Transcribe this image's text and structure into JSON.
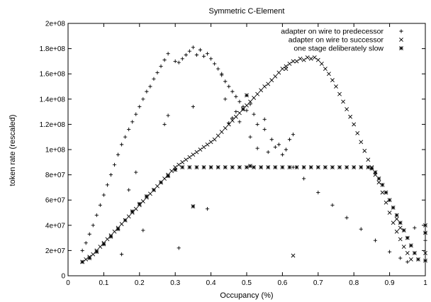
{
  "chart_data": {
    "type": "scatter",
    "title": "Symmetric C-Element",
    "xlabel": "Occupancy (%)",
    "ylabel": "token rate (rescaled)",
    "xlim": [
      0,
      1
    ],
    "ylim": [
      0,
      200000000
    ],
    "x_ticks": [
      0,
      0.1,
      0.2,
      0.3,
      0.4,
      0.5,
      0.6,
      0.7,
      0.8,
      0.9,
      1
    ],
    "x_tick_labels": [
      "0",
      "0.1",
      "0.2",
      "0.3",
      "0.4",
      "0.5",
      "0.6",
      "0.7",
      "0.8",
      "0.9",
      "1"
    ],
    "y_ticks": [
      0,
      20000000,
      40000000,
      60000000,
      80000000,
      100000000,
      120000000,
      140000000,
      160000000,
      180000000,
      200000000
    ],
    "y_tick_labels": [
      "0",
      "2e+07",
      "4e+07",
      "6e+07",
      "8e+07",
      "1e+08",
      "1.2e+08",
      "1.4e+08",
      "1.6e+08",
      "1.8e+08",
      "2e+08"
    ],
    "grid": false,
    "legend_position": "top-right",
    "series": [
      {
        "name": "adapter on wire to predecessor",
        "marker": "plus",
        "points": [
          [
            0.04,
            20000000
          ],
          [
            0.05,
            26000000
          ],
          [
            0.06,
            33000000
          ],
          [
            0.07,
            40000000
          ],
          [
            0.08,
            48000000
          ],
          [
            0.09,
            56000000
          ],
          [
            0.1,
            64000000
          ],
          [
            0.11,
            72000000
          ],
          [
            0.12,
            80000000
          ],
          [
            0.13,
            88000000
          ],
          [
            0.14,
            96000000
          ],
          [
            0.15,
            104000000
          ],
          [
            0.16,
            110000000
          ],
          [
            0.17,
            116000000
          ],
          [
            0.18,
            122000000
          ],
          [
            0.19,
            128000000
          ],
          [
            0.2,
            134000000
          ],
          [
            0.21,
            140000000
          ],
          [
            0.22,
            146000000
          ],
          [
            0.23,
            150000000
          ],
          [
            0.24,
            156000000
          ],
          [
            0.25,
            161000000
          ],
          [
            0.26,
            166000000
          ],
          [
            0.27,
            171000000
          ],
          [
            0.28,
            176000000
          ],
          [
            0.3,
            170000000
          ],
          [
            0.31,
            169000000
          ],
          [
            0.32,
            172000000
          ],
          [
            0.33,
            175000000
          ],
          [
            0.34,
            178000000
          ],
          [
            0.35,
            181000000
          ],
          [
            0.36,
            175000000
          ],
          [
            0.37,
            179000000
          ],
          [
            0.38,
            174000000
          ],
          [
            0.39,
            176000000
          ],
          [
            0.4,
            172000000
          ],
          [
            0.41,
            168000000
          ],
          [
            0.42,
            164000000
          ],
          [
            0.43,
            159000000
          ],
          [
            0.44,
            154000000
          ],
          [
            0.45,
            150000000
          ],
          [
            0.46,
            146000000
          ],
          [
            0.47,
            142000000
          ],
          [
            0.48,
            138000000
          ],
          [
            0.49,
            134000000
          ],
          [
            0.5,
            131000000
          ],
          [
            0.51,
            136000000
          ],
          [
            0.52,
            128000000
          ],
          [
            0.53,
            120000000
          ],
          [
            0.55,
            116000000
          ],
          [
            0.57,
            108000000
          ],
          [
            0.6,
            96000000
          ],
          [
            0.63,
            86000000
          ],
          [
            0.66,
            77000000
          ],
          [
            0.7,
            66000000
          ],
          [
            0.74,
            56000000
          ],
          [
            0.78,
            46000000
          ],
          [
            0.82,
            37000000
          ],
          [
            0.86,
            28000000
          ],
          [
            0.9,
            19000000
          ],
          [
            0.93,
            14000000
          ],
          [
            0.95,
            11000000
          ],
          [
            0.97,
            38000000
          ],
          [
            1.0,
            28000000
          ],
          [
            0.15,
            17000000
          ],
          [
            0.17,
            68000000
          ],
          [
            0.19,
            82000000
          ],
          [
            0.21,
            36000000
          ],
          [
            0.27,
            120000000
          ],
          [
            0.28,
            127000000
          ],
          [
            0.31,
            22000000
          ],
          [
            0.35,
            134000000
          ],
          [
            0.39,
            53000000
          ],
          [
            0.43,
            160000000
          ],
          [
            0.44,
            140000000
          ],
          [
            0.45,
            121000000
          ],
          [
            0.46,
            125000000
          ],
          [
            0.47,
            130000000
          ],
          [
            0.48,
            122000000
          ],
          [
            0.51,
            110000000
          ],
          [
            0.53,
            101000000
          ],
          [
            0.56,
            98000000
          ],
          [
            0.58,
            102000000
          ],
          [
            0.59,
            104000000
          ],
          [
            0.61,
            100000000
          ],
          [
            0.62,
            108000000
          ],
          [
            0.63,
            112000000
          ],
          [
            0.55,
            124000000
          ]
        ]
      },
      {
        "name": "adapter on wire to successor",
        "marker": "cross",
        "points": [
          [
            0.04,
            11000000
          ],
          [
            0.05,
            13000000
          ],
          [
            0.06,
            15000000
          ],
          [
            0.07,
            17000000
          ],
          [
            0.08,
            20000000
          ],
          [
            0.09,
            23000000
          ],
          [
            0.1,
            26000000
          ],
          [
            0.11,
            29000000
          ],
          [
            0.12,
            32000000
          ],
          [
            0.13,
            35000000
          ],
          [
            0.14,
            38000000
          ],
          [
            0.15,
            41000000
          ],
          [
            0.16,
            44000000
          ],
          [
            0.17,
            47000000
          ],
          [
            0.18,
            50000000
          ],
          [
            0.19,
            53000000
          ],
          [
            0.2,
            56000000
          ],
          [
            0.21,
            59000000
          ],
          [
            0.22,
            62000000
          ],
          [
            0.23,
            65000000
          ],
          [
            0.24,
            68000000
          ],
          [
            0.25,
            71000000
          ],
          [
            0.26,
            74000000
          ],
          [
            0.27,
            77000000
          ],
          [
            0.28,
            80000000
          ],
          [
            0.29,
            83000000
          ],
          [
            0.3,
            86000000
          ],
          [
            0.31,
            88000000
          ],
          [
            0.32,
            90000000
          ],
          [
            0.33,
            92000000
          ],
          [
            0.34,
            94000000
          ],
          [
            0.35,
            96000000
          ],
          [
            0.36,
            98000000
          ],
          [
            0.37,
            100000000
          ],
          [
            0.38,
            102000000
          ],
          [
            0.39,
            104000000
          ],
          [
            0.4,
            106000000
          ],
          [
            0.41,
            108000000
          ],
          [
            0.42,
            111000000
          ],
          [
            0.43,
            114000000
          ],
          [
            0.44,
            117000000
          ],
          [
            0.45,
            120000000
          ],
          [
            0.46,
            123000000
          ],
          [
            0.47,
            126000000
          ],
          [
            0.48,
            129000000
          ],
          [
            0.49,
            132000000
          ],
          [
            0.5,
            135000000
          ],
          [
            0.51,
            138000000
          ],
          [
            0.52,
            141000000
          ],
          [
            0.53,
            144000000
          ],
          [
            0.54,
            147000000
          ],
          [
            0.55,
            150000000
          ],
          [
            0.56,
            152000000
          ],
          [
            0.57,
            155000000
          ],
          [
            0.58,
            158000000
          ],
          [
            0.59,
            161000000
          ],
          [
            0.6,
            164000000
          ],
          [
            0.61,
            166000000
          ],
          [
            0.62,
            168000000
          ],
          [
            0.63,
            170000000
          ],
          [
            0.64,
            170000000
          ],
          [
            0.65,
            172000000
          ],
          [
            0.66,
            171000000
          ],
          [
            0.67,
            173000000
          ],
          [
            0.68,
            172000000
          ],
          [
            0.69,
            173000000
          ],
          [
            0.7,
            171000000
          ],
          [
            0.71,
            168000000
          ],
          [
            0.72,
            164000000
          ],
          [
            0.73,
            160000000
          ],
          [
            0.74,
            155000000
          ],
          [
            0.75,
            150000000
          ],
          [
            0.76,
            144000000
          ],
          [
            0.77,
            138000000
          ],
          [
            0.78,
            132000000
          ],
          [
            0.79,
            126000000
          ],
          [
            0.8,
            120000000
          ],
          [
            0.81,
            113000000
          ],
          [
            0.82,
            106000000
          ],
          [
            0.83,
            99000000
          ],
          [
            0.84,
            92000000
          ],
          [
            0.85,
            86000000
          ],
          [
            0.86,
            80000000
          ],
          [
            0.87,
            74000000
          ],
          [
            0.88,
            66000000
          ],
          [
            0.89,
            58000000
          ],
          [
            0.9,
            50000000
          ],
          [
            0.91,
            42000000
          ],
          [
            0.92,
            35000000
          ],
          [
            0.93,
            29000000
          ],
          [
            0.94,
            23000000
          ],
          [
            0.95,
            18000000
          ],
          [
            0.96,
            13000000
          ],
          [
            1.0,
            18000000
          ],
          [
            0.61,
            164000000
          ],
          [
            0.63,
            16000000
          ],
          [
            0.92,
            45000000
          ],
          [
            0.93,
            38000000
          ]
        ]
      },
      {
        "name": "one stage deliberately slow",
        "marker": "star",
        "points": [
          [
            0.04,
            11000000
          ],
          [
            0.06,
            14000000
          ],
          [
            0.08,
            19000000
          ],
          [
            0.1,
            25000000
          ],
          [
            0.12,
            31000000
          ],
          [
            0.14,
            37000000
          ],
          [
            0.16,
            44000000
          ],
          [
            0.18,
            51000000
          ],
          [
            0.2,
            57000000
          ],
          [
            0.22,
            63000000
          ],
          [
            0.24,
            68000000
          ],
          [
            0.26,
            74000000
          ],
          [
            0.28,
            79000000
          ],
          [
            0.3,
            84000000
          ],
          [
            0.32,
            86000000
          ],
          [
            0.34,
            86000000
          ],
          [
            0.36,
            86000000
          ],
          [
            0.38,
            86000000
          ],
          [
            0.4,
            86000000
          ],
          [
            0.42,
            86000000
          ],
          [
            0.44,
            86000000
          ],
          [
            0.46,
            86000000
          ],
          [
            0.48,
            86000000
          ],
          [
            0.5,
            86000000
          ],
          [
            0.52,
            86000000
          ],
          [
            0.54,
            86000000
          ],
          [
            0.56,
            86000000
          ],
          [
            0.58,
            86000000
          ],
          [
            0.6,
            86000000
          ],
          [
            0.62,
            86000000
          ],
          [
            0.64,
            86000000
          ],
          [
            0.66,
            86000000
          ],
          [
            0.68,
            86000000
          ],
          [
            0.7,
            86000000
          ],
          [
            0.72,
            86000000
          ],
          [
            0.74,
            86000000
          ],
          [
            0.76,
            86000000
          ],
          [
            0.78,
            86000000
          ],
          [
            0.8,
            86000000
          ],
          [
            0.82,
            86000000
          ],
          [
            0.84,
            86000000
          ],
          [
            0.85,
            85000000
          ],
          [
            0.86,
            82000000
          ],
          [
            0.87,
            77000000
          ],
          [
            0.88,
            72000000
          ],
          [
            0.89,
            66000000
          ],
          [
            0.9,
            60000000
          ],
          [
            0.91,
            54000000
          ],
          [
            0.92,
            48000000
          ],
          [
            0.93,
            42000000
          ],
          [
            0.94,
            36000000
          ],
          [
            0.95,
            30000000
          ],
          [
            0.96,
            24000000
          ],
          [
            0.97,
            18000000
          ],
          [
            0.98,
            13000000
          ],
          [
            1.0,
            40000000
          ],
          [
            1.0,
            34000000
          ],
          [
            1.0,
            12000000
          ],
          [
            0.35,
            55000000
          ],
          [
            0.5,
            143000000
          ],
          [
            0.49,
            132000000
          ],
          [
            0.51,
            87000000
          ]
        ]
      }
    ]
  }
}
